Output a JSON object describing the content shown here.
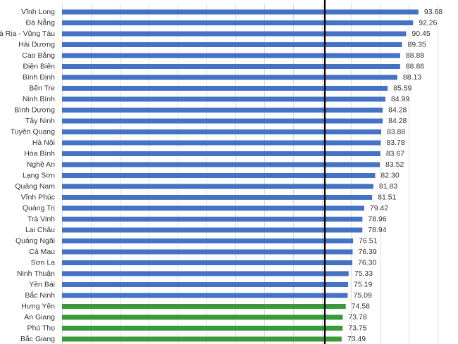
{
  "chart_data": {
    "type": "bar",
    "orientation": "horizontal",
    "categories": [
      "Vĩnh Long",
      "Đà Nẵng",
      "à Rịa - Vũng Tàu",
      "Hải Dương",
      "Cao Bằng",
      "Điện Biên",
      "Bình Định",
      "Bến Tre",
      "Ninh Bình",
      "Bình Dương",
      "Tây Ninh",
      "Tuyên Quang",
      "Hà Nội",
      "Hòa Bình",
      "Nghệ An",
      "Lạng Sơn",
      "Quảng Nam",
      "Vĩnh Phúc",
      "Quảng Trị",
      "Trà Vinh",
      "Lai Châu",
      "Quảng Ngãi",
      "Cà Mau",
      "Sơn La",
      "Ninh Thuận",
      "Yên Bái",
      "Bắc Ninh",
      "Hưng Yên",
      "An Giang",
      "Phú Thọ",
      "Bắc Giang"
    ],
    "values": [
      93.68,
      92.26,
      90.45,
      89.35,
      88.88,
      88.86,
      88.13,
      85.59,
      84.99,
      84.28,
      84.28,
      83.88,
      83.78,
      83.67,
      83.52,
      82.3,
      81.83,
      81.51,
      79.42,
      78.96,
      78.94,
      76.51,
      76.39,
      76.3,
      75.33,
      75.19,
      75.09,
      74.58,
      73.78,
      73.75,
      73.49
    ],
    "value_labels": [
      "93.68",
      "92.26",
      "90.45",
      "89.35",
      "88.88",
      "88.86",
      "88.13",
      "85.59",
      "84.99",
      "84.28",
      "84.28",
      "83.88",
      "83.78",
      "83.67",
      "83.52",
      "82.30",
      "81.83",
      "81.51",
      "79.42",
      "78.96",
      "78.94",
      "76.51",
      "76.39",
      "76.30",
      "75.33",
      "75.19",
      "75.09",
      "74.58",
      "73.78",
      "73.75",
      "73.49"
    ],
    "colors": [
      "#4472c4",
      "#4472c4",
      "#4472c4",
      "#4472c4",
      "#4472c4",
      "#4472c4",
      "#4472c4",
      "#4472c4",
      "#4472c4",
      "#4472c4",
      "#4472c4",
      "#4472c4",
      "#4472c4",
      "#4472c4",
      "#4472c4",
      "#4472c4",
      "#4472c4",
      "#4472c4",
      "#4472c4",
      "#4472c4",
      "#4472c4",
      "#4472c4",
      "#4472c4",
      "#4472c4",
      "#4472c4",
      "#4472c4",
      "#4472c4",
      "#3a9a3a",
      "#3a9a3a",
      "#3a9a3a",
      "#3a9a3a"
    ],
    "xlim": [
      0,
      100
    ]
  }
}
